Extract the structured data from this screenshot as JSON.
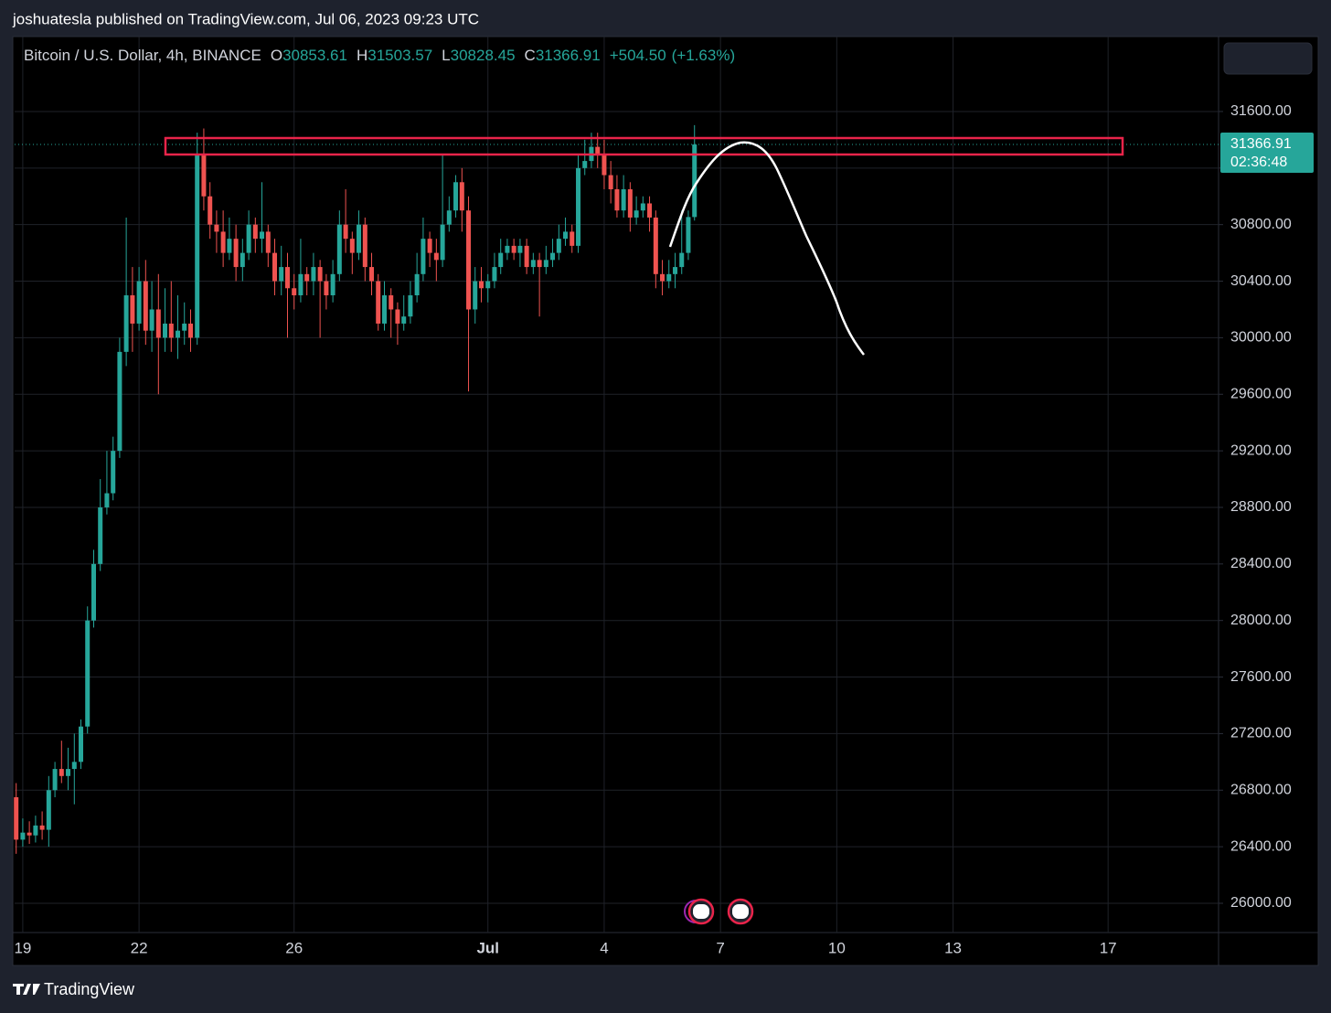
{
  "header": "joshuatesla published on TradingView.com, Jul 06, 2023 09:23 UTC",
  "footer": "TradingView",
  "chart_data": {
    "type": "candlestick",
    "legend": {
      "symbol": "Bitcoin / U.S. Dollar, 4h, BINANCE",
      "items": [
        {
          "key": "O",
          "value": 30853.61
        },
        {
          "key": "H",
          "value": 31503.57
        },
        {
          "key": "L",
          "value": 30828.45
        },
        {
          "key": "C",
          "value": 31366.91
        }
      ],
      "change": {
        "value": 504.5,
        "label": "+504.50"
      },
      "change_pct": {
        "value": 1.63,
        "label": "(+1.63%)"
      }
    },
    "last_price": 31366.91,
    "countdown": "02:36:48",
    "up_color": "#26a69a",
    "down_color": "#ef5350",
    "grid": true,
    "xlim": [
      -0.21,
      30.85
    ],
    "ylim": [
      25793,
      32130
    ],
    "xticks": [
      {
        "value": 0,
        "label": "19"
      },
      {
        "value": 3,
        "label": "22"
      },
      {
        "value": 7,
        "label": "26"
      },
      {
        "value": 12,
        "label": "Jul"
      },
      {
        "value": 15,
        "label": "4"
      },
      {
        "value": 18,
        "label": "7"
      },
      {
        "value": 21,
        "label": "10"
      },
      {
        "value": 24,
        "label": "13"
      },
      {
        "value": 28,
        "label": "17"
      }
    ],
    "yticks": [
      {
        "value": 26000,
        "label": "26000.00"
      },
      {
        "value": 26400,
        "label": "26400.00"
      },
      {
        "value": 26800,
        "label": "26800.00"
      },
      {
        "value": 27200,
        "label": "27200.00"
      },
      {
        "value": 27600,
        "label": "27600.00"
      },
      {
        "value": 28000,
        "label": "28000.00"
      },
      {
        "value": 28400,
        "label": "28400.00"
      },
      {
        "value": 28800,
        "label": "28800.00"
      },
      {
        "value": 29200,
        "label": "29200.00"
      },
      {
        "value": 29600,
        "label": "29600.00"
      },
      {
        "value": 30000,
        "label": "30000.00"
      },
      {
        "value": 30400,
        "label": "30400.00"
      },
      {
        "value": 30800,
        "label": "30800.00"
      },
      {
        "value": 31200,
        "label": "31200.00"
      },
      {
        "value": 31600,
        "label": "31600.00"
      }
    ],
    "x": [
      -0.17,
      0,
      0.17,
      0.33,
      0.5,
      0.67,
      0.83,
      1,
      1.17,
      1.33,
      1.5,
      1.67,
      1.83,
      2,
      2.17,
      2.33,
      2.5,
      2.67,
      2.83,
      3,
      3.17,
      3.33,
      3.5,
      3.67,
      3.83,
      4,
      4.17,
      4.33,
      4.5,
      4.67,
      4.83,
      5,
      5.17,
      5.33,
      5.5,
      5.67,
      5.83,
      6,
      6.17,
      6.33,
      6.5,
      6.67,
      6.83,
      7,
      7.17,
      7.33,
      7.5,
      7.67,
      7.83,
      8,
      8.17,
      8.33,
      8.5,
      8.67,
      8.83,
      9,
      9.17,
      9.33,
      9.5,
      9.67,
      9.83,
      10,
      10.17,
      10.33,
      10.5,
      10.67,
      10.83,
      11,
      11.17,
      11.33,
      11.5,
      11.67,
      11.83,
      12,
      12.17,
      12.33,
      12.5,
      12.67,
      12.83,
      13,
      13.17,
      13.33,
      13.5,
      13.67,
      13.83,
      14,
      14.17,
      14.33,
      14.5,
      14.67,
      14.83,
      15,
      15.17,
      15.33,
      15.5,
      15.67,
      15.83,
      16,
      16.17,
      16.33,
      16.5,
      16.67,
      16.83,
      17,
      17.17,
      17.33
    ],
    "open": [
      26750,
      26450,
      26500,
      26480,
      26550,
      26520,
      26800,
      26950,
      26900,
      26950,
      27000,
      27250,
      28000,
      28400,
      28800,
      28900,
      29200,
      29900,
      30300,
      30100,
      30400,
      30050,
      30200,
      30000,
      30100,
      30000,
      30050,
      30100,
      30000,
      31300,
      31000,
      30800,
      30750,
      30600,
      30700,
      30500,
      30600,
      30800,
      30700,
      30750,
      30600,
      30400,
      30500,
      30350,
      30300,
      30450,
      30400,
      30500,
      30400,
      30300,
      30450,
      30800,
      30700,
      30600,
      30800,
      30500,
      30400,
      30100,
      30300,
      30200,
      30100,
      30150,
      30300,
      30450,
      30700,
      30600,
      30550,
      30800,
      30900,
      31100,
      30900,
      30200,
      30400,
      30350,
      30400,
      30500,
      30600,
      30650,
      30600,
      30650,
      30500,
      30550,
      30500,
      30550,
      30600,
      30700,
      30750,
      30650,
      31200,
      31250,
      31350,
      31300,
      31150,
      31050,
      30900,
      31050,
      30850,
      30900,
      30950,
      30850,
      30450,
      30400,
      30450,
      30500,
      30600,
      30853.61
    ],
    "high": [
      26850,
      26600,
      26580,
      26620,
      26650,
      26900,
      27000,
      27150,
      27100,
      27200,
      27300,
      28100,
      28500,
      29000,
      29200,
      29300,
      30000,
      30850,
      30500,
      30500,
      30550,
      30400,
      30450,
      30350,
      30400,
      30300,
      30250,
      30200,
      31450,
      31480,
      31100,
      30900,
      30900,
      30850,
      30800,
      30700,
      30900,
      30850,
      31100,
      30800,
      30700,
      30650,
      30600,
      30450,
      30700,
      30500,
      30600,
      30550,
      30450,
      30550,
      30900,
      31050,
      30750,
      30900,
      30850,
      30600,
      30450,
      30400,
      30350,
      30250,
      30300,
      30400,
      30600,
      30850,
      30750,
      30700,
      31300,
      31000,
      31150,
      31200,
      31000,
      30500,
      30500,
      30450,
      30600,
      30700,
      30700,
      30700,
      30700,
      30700,
      30600,
      30600,
      30650,
      30700,
      30800,
      30850,
      30800,
      31300,
      31400,
      31450,
      31450,
      31400,
      31250,
      31150,
      31150,
      31100,
      31000,
      31000,
      31000,
      30900,
      30550,
      30550,
      30600,
      30900,
      30900,
      31503.57
    ],
    "low": [
      26350,
      26400,
      26420,
      26430,
      26450,
      26400,
      26750,
      26850,
      26800,
      26700,
      26950,
      27200,
      27950,
      28350,
      28750,
      28850,
      29150,
      29800,
      29900,
      30050,
      29950,
      29900,
      29600,
      29900,
      29900,
      29850,
      29950,
      29900,
      29950,
      30900,
      30700,
      30600,
      30500,
      30550,
      30400,
      30400,
      30550,
      30600,
      30600,
      30500,
      30300,
      30300,
      30000,
      30200,
      30250,
      30300,
      30300,
      30000,
      30200,
      30250,
      30400,
      30600,
      30450,
      30550,
      30400,
      30300,
      30050,
      30050,
      30000,
      29950,
      30050,
      30100,
      30250,
      30400,
      30500,
      30400,
      30500,
      30750,
      30850,
      30750,
      29620,
      30100,
      30250,
      30250,
      30350,
      30450,
      30550,
      30550,
      30500,
      30450,
      30450,
      30150,
      30450,
      30500,
      30550,
      30650,
      30600,
      30600,
      31150,
      31200,
      31200,
      31050,
      30950,
      30850,
      30850,
      30750,
      30800,
      30850,
      30750,
      30350,
      30300,
      30350,
      30350,
      30450,
      30550,
      30828.45
    ],
    "close": [
      26450,
      26500,
      26480,
      26550,
      26520,
      26800,
      26950,
      26900,
      26950,
      27000,
      27250,
      28000,
      28400,
      28800,
      28900,
      29200,
      29900,
      30300,
      30100,
      30400,
      30050,
      30200,
      30000,
      30100,
      30000,
      30050,
      30100,
      30000,
      31300,
      31000,
      30800,
      30750,
      30600,
      30700,
      30500,
      30600,
      30800,
      30700,
      30750,
      30600,
      30400,
      30500,
      30350,
      30300,
      30450,
      30400,
      30500,
      30400,
      30300,
      30450,
      30800,
      30700,
      30600,
      30800,
      30500,
      30400,
      30100,
      30300,
      30200,
      30100,
      30150,
      30300,
      30450,
      30700,
      30600,
      30550,
      30800,
      30900,
      31100,
      30900,
      30200,
      30400,
      30350,
      30400,
      30500,
      30600,
      30650,
      30600,
      30650,
      30500,
      30550,
      30500,
      30550,
      30600,
      30700,
      30750,
      30650,
      31200,
      31250,
      31350,
      31300,
      31150,
      31050,
      30900,
      31050,
      30850,
      30900,
      30950,
      30850,
      30450,
      30400,
      30450,
      30500,
      30600,
      30853.61,
      31366.91
    ]
  }
}
